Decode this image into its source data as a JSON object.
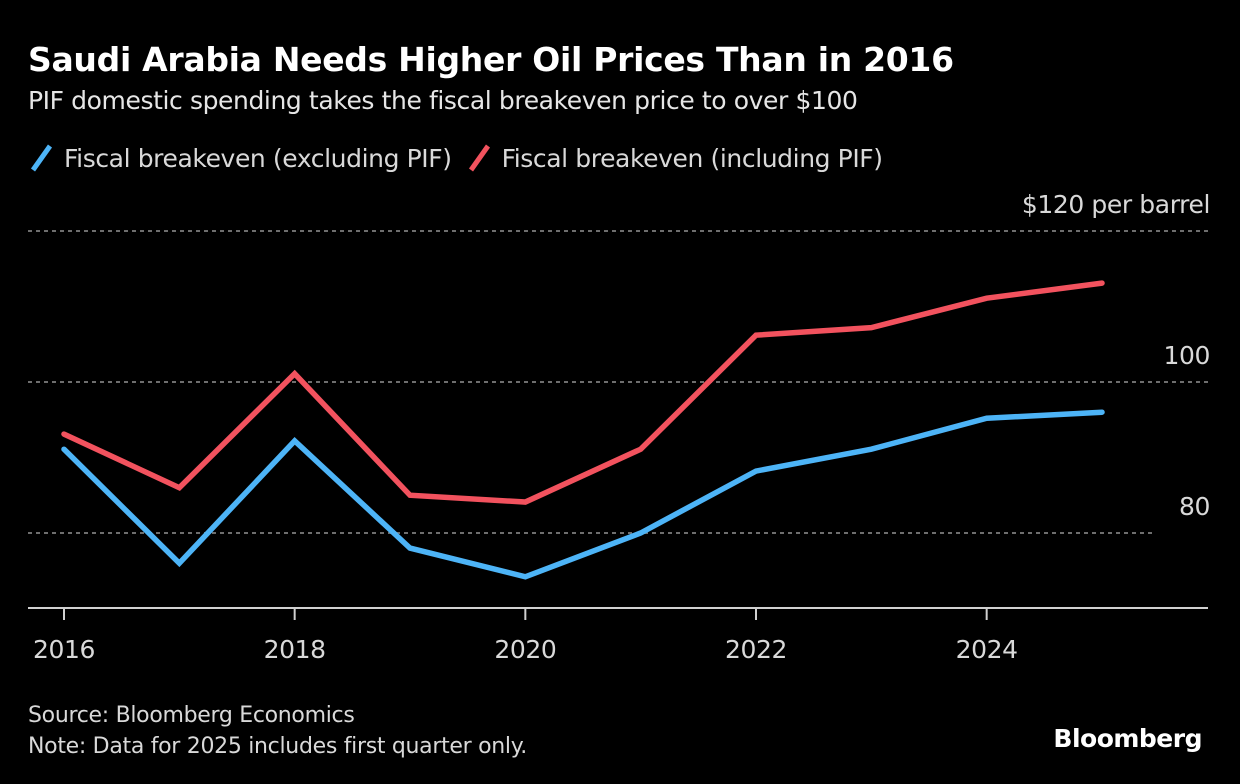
{
  "chart_data": {
    "type": "line",
    "title": "Saudi Arabia Needs Higher Oil Prices Than in 2016",
    "subtitle": "PIF domestic spending takes the fiscal breakeven price to over $100",
    "xlabel": "",
    "ylabel": "",
    "x": [
      2016,
      2017,
      2018,
      2019,
      2020,
      2021,
      2022,
      2023,
      2024,
      2025
    ],
    "xticks": [
      "2016",
      "2018",
      "2020",
      "2022",
      "2024"
    ],
    "xtick_values": [
      2016,
      2018,
      2020,
      2022,
      2024
    ],
    "yticks": [
      80,
      100,
      120
    ],
    "ytick_labels": [
      "80",
      "100",
      "$120 per barrel"
    ],
    "ylim": [
      70,
      120
    ],
    "xlim": [
      2015.7,
      2025.9
    ],
    "grid": true,
    "legend_position": "top-left",
    "series": [
      {
        "name": "Fiscal breakeven (excluding PIF)",
        "color": "#4db4f7",
        "values": [
          91.1,
          76.0,
          92.2,
          78.0,
          74.2,
          80.0,
          88.2,
          91.1,
          95.2,
          96.0
        ]
      },
      {
        "name": "Fiscal breakeven (including PIF)",
        "color": "#f2525e",
        "values": [
          93.1,
          86.0,
          101.1,
          85.0,
          84.1,
          91.1,
          106.2,
          107.2,
          111.1,
          113.1
        ]
      }
    ]
  },
  "footer": {
    "source": "Source: Bloomberg Economics",
    "note": "Note: Data for 2025 includes first quarter only."
  },
  "brand": "Bloomberg",
  "colors": {
    "background": "#000000",
    "gridline": "#6e6e6e",
    "axis": "#d0d0d0"
  }
}
